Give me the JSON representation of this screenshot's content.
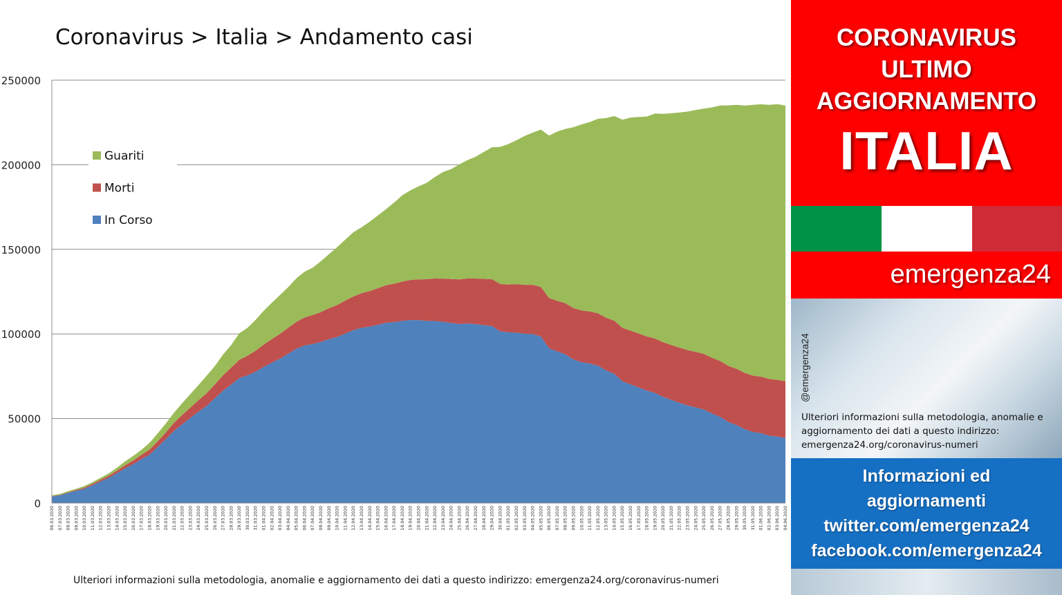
{
  "title": "Coronavirus > Italia > Andamento casi",
  "footer_note": "Ulteriori informazioni sulla metodologia, anomalie e aggiornamento dei dati a questo indirizzo: emergenza24.org/coronavirus-numeri",
  "legend_items": [
    {
      "label": "Guariti",
      "color": "#9bbb59"
    },
    {
      "label": "Morti",
      "color": "#c0504d"
    },
    {
      "label": "In Corso",
      "color": "#4f81bd"
    }
  ],
  "chart_data": {
    "type": "area",
    "stacked": true,
    "title": "Coronavirus > Italia > Andamento casi",
    "xlabel": "",
    "ylabel": "",
    "ylim": [
      0,
      250000
    ],
    "y_ticks": [
      "0",
      "50000",
      "100000",
      "150000",
      "200000",
      "250000"
    ],
    "grid": true,
    "legend_position": "top-left",
    "x_first": "06.03.2020",
    "x_last": "04.06.2020",
    "x": [
      "06.03.2020",
      "07.03.2020",
      "08.03.2020",
      "09.03.2020",
      "10.03.2020",
      "11.03.2020",
      "12.03.2020",
      "13.03.2020",
      "14.03.2020",
      "15.03.2020",
      "16.03.2020",
      "17.03.2020",
      "18.03.2020",
      "19.03.2020",
      "20.03.2020",
      "21.03.2020",
      "22.03.2020",
      "23.03.2020",
      "24.03.2020",
      "25.03.2020",
      "26.03.2020",
      "27.03.2020",
      "28.03.2020",
      "29.03.2020",
      "30.03.2020",
      "31.03.2020",
      "01.04.2020",
      "02.04.2020",
      "03.04.2020",
      "04.04.2020",
      "05.04.2020",
      "06.04.2020",
      "07.04.2020",
      "08.04.2020",
      "09.04.2020",
      "10.04.2020",
      "11.04.2020",
      "12.04.2020",
      "13.04.2020",
      "14.04.2020",
      "15.04.2020",
      "16.04.2020",
      "17.04.2020",
      "18.04.2020",
      "19.04.2020",
      "20.04.2020",
      "21.04.2020",
      "22.04.2020",
      "23.04.2020",
      "24.04.2020",
      "25.04.2020",
      "26.04.2020",
      "27.04.2020",
      "28.04.2020",
      "29.04.2020",
      "30.04.2020",
      "01.05.2020",
      "02.05.2020",
      "03.05.2020",
      "04.05.2020",
      "05.05.2020",
      "06.05.2020",
      "07.05.2020",
      "08.05.2020",
      "09.05.2020",
      "10.05.2020",
      "11.05.2020",
      "12.05.2020",
      "13.05.2020",
      "14.05.2020",
      "15.05.2020",
      "16.05.2020",
      "17.05.2020",
      "18.05.2020",
      "19.05.2020",
      "20.05.2020",
      "21.05.2020",
      "22.05.2020",
      "23.05.2020",
      "24.05.2020",
      "25.05.2020",
      "26.05.2020",
      "27.05.2020",
      "28.05.2020",
      "29.05.2020",
      "30.05.2020",
      "31.05.2020",
      "01.06.2020",
      "02.06.2020",
      "03.06.2020",
      "04.06.2020"
    ],
    "series": [
      {
        "name": "In Corso",
        "color": "#4f81bd",
        "values": [
          3900,
          4600,
          6000,
          7300,
          8500,
          10600,
          12800,
          14950,
          17750,
          20600,
          23050,
          26050,
          28700,
          33200,
          37850,
          42700,
          46650,
          50400,
          54050,
          57500,
          62000,
          66400,
          70050,
          73900,
          75500,
          77650,
          80550,
          83050,
          85400,
          88300,
          91250,
          93200,
          94050,
          95250,
          96900,
          98250,
          100250,
          102250,
          103600,
          104300,
          105400,
          106600,
          106950,
          107750,
          108250,
          108150,
          107700,
          107650,
          107150,
          106500,
          105850,
          106150,
          105800,
          105200,
          104650,
          101550,
          100950,
          100750,
          100150,
          99950,
          98450,
          91550,
          89650,
          87950,
          84850,
          83300,
          82500,
          81250,
          78450,
          76450,
          72000,
          70150,
          68350,
          66500,
          65100,
          62750,
          60950,
          59300,
          57700,
          56600,
          55300,
          52950,
          50950,
          47950,
          46150,
          43700,
          42050,
          41350,
          39900,
          39300,
          38450
        ]
      },
      {
        "name": "Morti",
        "color": "#c0504d",
        "values": [
          200,
          230,
          370,
          460,
          630,
          830,
          1020,
          1270,
          1440,
          1810,
          2160,
          2500,
          2980,
          3410,
          4030,
          4830,
          5480,
          6080,
          6820,
          7500,
          8160,
          9130,
          10020,
          10780,
          11590,
          12430,
          13160,
          13920,
          14680,
          15360,
          15890,
          16520,
          17130,
          17670,
          18280,
          18850,
          19470,
          19900,
          20460,
          21070,
          21650,
          22170,
          22750,
          23230,
          23660,
          24110,
          24650,
          25090,
          25550,
          25970,
          26380,
          26640,
          26980,
          27360,
          27680,
          27970,
          28240,
          28710,
          28880,
          29080,
          29320,
          29680,
          29960,
          30200,
          30390,
          30560,
          30740,
          30910,
          31110,
          31370,
          31610,
          31760,
          31910,
          32010,
          32170,
          32330,
          32490,
          32620,
          32730,
          32790,
          32880,
          32960,
          33070,
          33150,
          33230,
          33290,
          33340,
          33420,
          33480,
          33530,
          33600
        ]
      },
      {
        "name": "Guariti",
        "color": "#9bbb59",
        "values": [
          500,
          600,
          700,
          700,
          1000,
          1000,
          1200,
          1400,
          1800,
          2300,
          2700,
          3000,
          4000,
          4700,
          5300,
          6000,
          7000,
          8000,
          9000,
          10300,
          10900,
          12300,
          13300,
          15700,
          16500,
          18200,
          20000,
          21500,
          23000,
          24000,
          25700,
          27000,
          28000,
          30000,
          32000,
          34200,
          36000,
          38000,
          39000,
          41000,
          43000,
          45000,
          48000,
          51000,
          53000,
          55000,
          57000,
          60000,
          63000,
          65000,
          68000,
          70000,
          72000,
          75000,
          78000,
          81000,
          83000,
          85000,
          88000,
          90000,
          93000,
          96000,
          100000,
          103000,
          107000,
          110000,
          112000,
          115000,
          118000,
          121000,
          123000,
          126000,
          128000,
          130000,
          133000,
          135000,
          137000,
          139000,
          141000,
          143000,
          145000,
          148000,
          151000,
          154000,
          156000,
          158000,
          160000,
          161000,
          162000,
          163000,
          163000
        ]
      }
    ]
  },
  "side": {
    "head_lines": [
      "CORONAVIRUS",
      "ULTIMO",
      "AGGIORNAMENTO"
    ],
    "country": "ITALIA",
    "brand": "emergenza24",
    "handle": "@emergenza24",
    "note": "Ulteriori informazioni sulla metodologia, anomalie e aggiornamento dei dati a questo indirizzo: emergenza24.org/coronavirus-numeri",
    "info_lines": [
      "Informazioni ed",
      "aggiornamenti",
      "twitter.com/emergenza24",
      "facebook.com/emergenza24"
    ]
  }
}
